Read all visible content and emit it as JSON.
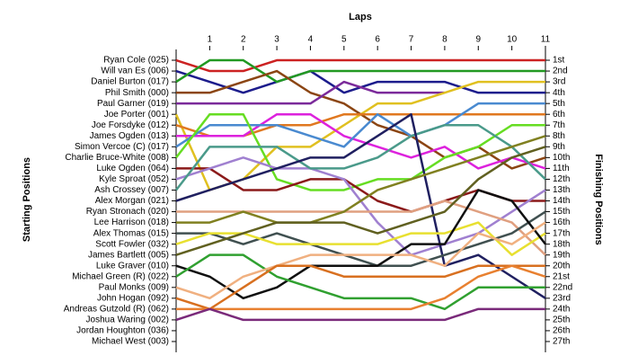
{
  "chart_data": {
    "type": "line",
    "title": "Laps",
    "y_label_left": "Starting Positions",
    "y_label_right": "Finishing Positions",
    "x": [
      0,
      1,
      2,
      3,
      4,
      5,
      6,
      7,
      8,
      9,
      10,
      11
    ],
    "xlim": [
      0,
      11
    ],
    "xticks": [
      1,
      2,
      3,
      4,
      5,
      6,
      7,
      8,
      9,
      10,
      11
    ],
    "ylim": [
      27.5,
      0.5
    ],
    "yticks": [
      1,
      2,
      3,
      4,
      5,
      6,
      7,
      8,
      9,
      10,
      11,
      12,
      13,
      14,
      15,
      16,
      17,
      18,
      19,
      20,
      21,
      22,
      23,
      24,
      25,
      26,
      27
    ],
    "starting_labels": [
      "Ryan Cole (025)",
      "Will van Es (006)",
      "Daniel Burton (017)",
      "Phil Smith (000)",
      "Paul Garner (019)",
      "Joe Porter (001)",
      "Joe Forsdyke (012)",
      "James Ogden (013)",
      "Simon Vercoe  (C) (017)",
      "Charlie Bruce-White (008)",
      "Luke Ogden (064)",
      "Kyle Sproat (052)",
      "Ash Crossey (007)",
      "Alex Morgan (021)",
      "Ryan Stronach (020)",
      "Lee Harrison (018)",
      "Alex Thomas (015)",
      "Scott Fowler (032)",
      "James Bartlett (005)",
      "Luke Graver (010)",
      "Michael Green (R) (022)",
      "Paul Monks (009)",
      "John Hogan (092)",
      "Andreas Gutzold (R) (062)",
      "Joshua Waring (002)",
      "Jordan Houghton (036)",
      "Michael West (003)"
    ],
    "finishing_labels": [
      "1st",
      "2nd",
      "3rd",
      "4th",
      "5th",
      "6th",
      "7th",
      "8th",
      "9th",
      "10th",
      "11th",
      "12th",
      "13th",
      "14th",
      "15th",
      "16th",
      "17th",
      "18th",
      "19th",
      "20th",
      "21st",
      "22nd",
      "23rd",
      "24th",
      "25th",
      "26th",
      "27th"
    ],
    "series": [
      {
        "color": "#cc2222",
        "values": [
          1,
          2,
          2,
          1,
          1,
          1,
          1,
          1,
          1,
          1,
          1,
          1
        ]
      },
      {
        "color": "#1c1c8c",
        "values": [
          2,
          3,
          4,
          3,
          2,
          4,
          3,
          3,
          3,
          4,
          4,
          4
        ]
      },
      {
        "color": "#229922",
        "values": [
          3,
          1,
          1,
          3,
          2,
          2,
          2,
          2,
          2,
          2,
          2,
          2
        ]
      },
      {
        "color": "#8b4513",
        "values": [
          4,
          4,
          3,
          2,
          4,
          5,
          7,
          8,
          10,
          9,
          11,
          10
        ]
      },
      {
        "color": "#7b2a9a",
        "values": [
          5,
          5,
          5,
          5,
          5,
          3,
          4,
          4,
          4,
          null,
          null,
          null
        ]
      },
      {
        "color": "#e0c020",
        "values": [
          6,
          13,
          12,
          9,
          9,
          7,
          5,
          5,
          4,
          3,
          3,
          3
        ]
      },
      {
        "color": "#e07820",
        "values": [
          7,
          8,
          8,
          7,
          7,
          6,
          6,
          6,
          6,
          6,
          6,
          6
        ]
      },
      {
        "color": "#dd22dd",
        "values": [
          8,
          8,
          8,
          6,
          6,
          8,
          9,
          10,
          9,
          11,
          10,
          11
        ]
      },
      {
        "color": "#4a8ad0",
        "values": [
          9,
          7,
          7,
          7,
          8,
          9,
          6,
          8,
          7,
          5,
          5,
          5
        ]
      },
      {
        "color": "#66dd22",
        "values": [
          10,
          6,
          6,
          12,
          13,
          13,
          12,
          12,
          10,
          9,
          7,
          7
        ]
      },
      {
        "color": "#8b1a1a",
        "values": [
          11,
          11,
          13,
          13,
          12,
          12,
          14,
          15,
          14,
          13,
          14,
          14
        ]
      },
      {
        "color": "#a080d0",
        "values": [
          12,
          11,
          10,
          11,
          11,
          12,
          16,
          19,
          18,
          17,
          15,
          13
        ]
      },
      {
        "color": "#4a9a8a",
        "values": [
          13,
          9,
          9,
          9,
          11,
          11,
          10,
          8,
          7,
          7,
          9,
          12
        ]
      },
      {
        "color": "#202060",
        "values": [
          14,
          13,
          12,
          11,
          10,
          10,
          8,
          6,
          20,
          19,
          21,
          23
        ]
      },
      {
        "color": "#e0a080",
        "values": [
          15,
          15,
          15,
          15,
          15,
          15,
          15,
          15,
          14,
          15,
          16,
          19
        ]
      },
      {
        "color": "#808020",
        "values": [
          16,
          16,
          15,
          16,
          16,
          15,
          13,
          12,
          11,
          10,
          9,
          8
        ]
      },
      {
        "color": "#405050",
        "values": [
          17,
          17,
          18,
          17,
          18,
          19,
          20,
          20,
          19,
          18,
          17,
          15
        ]
      },
      {
        "color": "#e8e030",
        "values": [
          18,
          17,
          17,
          18,
          18,
          18,
          18,
          17,
          17,
          16,
          19,
          17
        ]
      },
      {
        "color": "#606020",
        "values": [
          19,
          18,
          17,
          16,
          16,
          16,
          17,
          16,
          15,
          12,
          10,
          9
        ]
      },
      {
        "color": "#101010",
        "values": [
          20,
          21,
          23,
          22,
          20,
          20,
          20,
          18,
          18,
          13,
          14,
          18
        ]
      },
      {
        "color": "#30a030",
        "values": [
          21,
          19,
          19,
          21,
          22,
          23,
          23,
          23,
          24,
          22,
          22,
          22
        ]
      },
      {
        "color": "#f0b080",
        "values": [
          22,
          23,
          21,
          20,
          19,
          19,
          19,
          19,
          20,
          17,
          18,
          16
        ]
      },
      {
        "color": "#d87020",
        "values": [
          23,
          24,
          22,
          20,
          20,
          21,
          21,
          21,
          21,
          20,
          20,
          20
        ]
      },
      {
        "color": "#e88030",
        "values": [
          24,
          24,
          24,
          24,
          24,
          24,
          24,
          24,
          23,
          21,
          20,
          21
        ]
      },
      {
        "color": "#7a2a7a",
        "values": [
          25,
          24,
          25,
          25,
          25,
          25,
          25,
          25,
          25,
          24,
          24,
          24
        ]
      }
    ]
  }
}
